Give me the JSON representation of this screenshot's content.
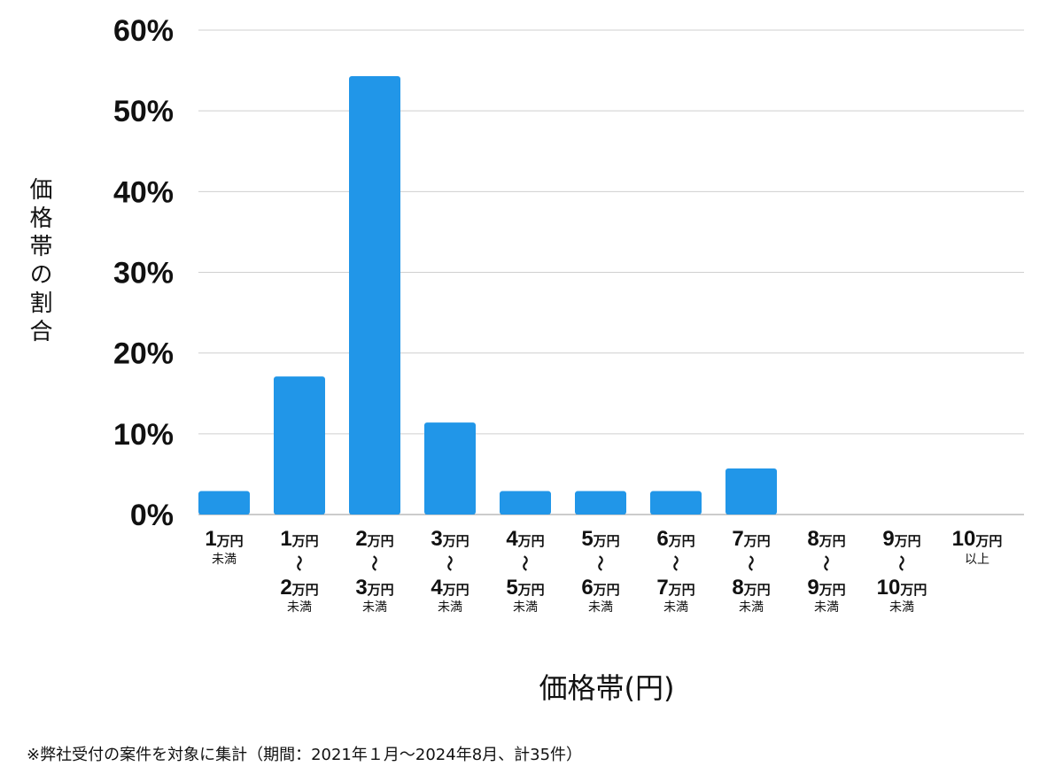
{
  "chart_data": {
    "type": "bar",
    "ylabel": "価格帯の割合",
    "xlabel": "価格帯(円)",
    "yticks": [
      "0%",
      "10%",
      "20%",
      "30%",
      "40%",
      "50%",
      "60%"
    ],
    "ylim": [
      0,
      60
    ],
    "grid": true,
    "bar_color": "#2196e8",
    "categories": [
      {
        "top": "1",
        "top_unit": "万円",
        "sep": "",
        "bottom": "",
        "bottom_unit": "",
        "note": "未満"
      },
      {
        "top": "1",
        "top_unit": "万円",
        "sep": "〜",
        "bottom": "2",
        "bottom_unit": "万円",
        "note": "未満"
      },
      {
        "top": "2",
        "top_unit": "万円",
        "sep": "〜",
        "bottom": "3",
        "bottom_unit": "万円",
        "note": "未満"
      },
      {
        "top": "3",
        "top_unit": "万円",
        "sep": "〜",
        "bottom": "4",
        "bottom_unit": "万円",
        "note": "未満"
      },
      {
        "top": "4",
        "top_unit": "万円",
        "sep": "〜",
        "bottom": "5",
        "bottom_unit": "万円",
        "note": "未満"
      },
      {
        "top": "5",
        "top_unit": "万円",
        "sep": "〜",
        "bottom": "6",
        "bottom_unit": "万円",
        "note": "未満"
      },
      {
        "top": "6",
        "top_unit": "万円",
        "sep": "〜",
        "bottom": "7",
        "bottom_unit": "万円",
        "note": "未満"
      },
      {
        "top": "7",
        "top_unit": "万円",
        "sep": "〜",
        "bottom": "8",
        "bottom_unit": "万円",
        "note": "未満"
      },
      {
        "top": "8",
        "top_unit": "万円",
        "sep": "〜",
        "bottom": "9",
        "bottom_unit": "万円",
        "note": "未満"
      },
      {
        "top": "9",
        "top_unit": "万円",
        "sep": "〜",
        "bottom": "10",
        "bottom_unit": "万円",
        "note": "未満"
      },
      {
        "top": "10",
        "top_unit": "万円",
        "sep": "",
        "bottom": "",
        "bottom_unit": "",
        "note": "以上"
      }
    ],
    "values": [
      2.9,
      17.1,
      54.3,
      11.4,
      2.9,
      2.9,
      2.9,
      5.7,
      0,
      0,
      0
    ]
  },
  "footnote": "※弊社受付の案件を対象に集計（期間：2021年１月〜2024年8月、計35件）"
}
